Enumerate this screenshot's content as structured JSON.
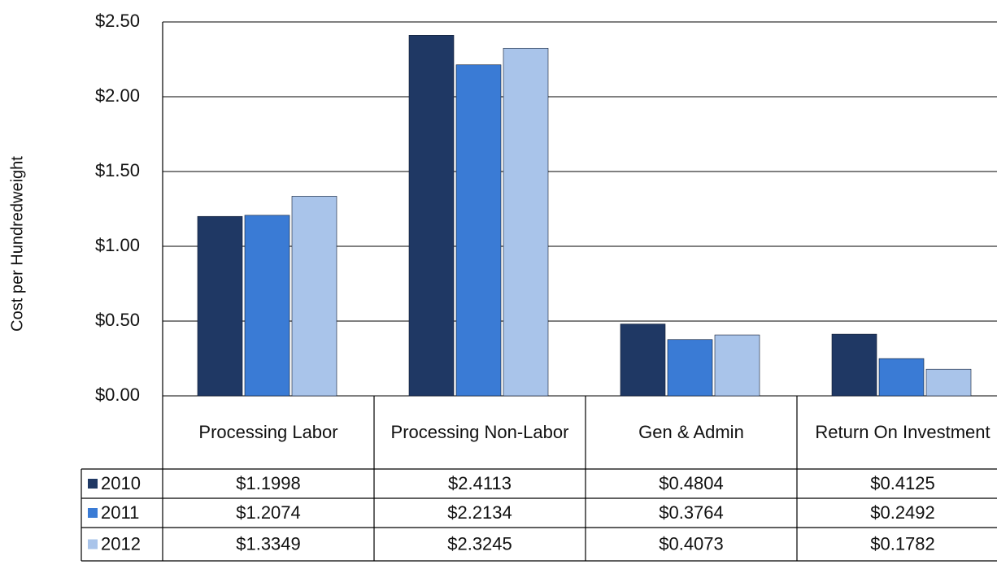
{
  "chart_data": {
    "type": "bar",
    "y_label": "Cost per Hundredweight",
    "categories": [
      "Processing Labor",
      "Processing Non-Labor",
      "Gen & Admin",
      "Return On Investment"
    ],
    "series": [
      {
        "name": "2010",
        "color": "#1f3864",
        "values": [
          1.1998,
          2.4113,
          0.4804,
          0.4125
        ],
        "value_labels": [
          "$1.1998",
          "$2.4113",
          "$0.4804",
          "$0.4125"
        ]
      },
      {
        "name": "2011",
        "color": "#3a7bd5",
        "values": [
          1.2074,
          2.2134,
          0.3764,
          0.2492
        ],
        "value_labels": [
          "$1.2074",
          "$2.2134",
          "$0.3764",
          "$0.2492"
        ]
      },
      {
        "name": "2012",
        "color": "#a9c4ea",
        "values": [
          1.3349,
          2.3245,
          0.4073,
          0.1782
        ],
        "value_labels": [
          "$1.3349",
          "$2.3245",
          "$0.4073",
          "$0.1782"
        ]
      }
    ],
    "ylim": [
      0,
      2.5
    ],
    "yticks": [
      {
        "value": 0,
        "label": "$0.00"
      },
      {
        "value": 0.5,
        "label": "$0.50"
      },
      {
        "value": 1,
        "label": "$1.00"
      },
      {
        "value": 1.5,
        "label": "$1.50"
      },
      {
        "value": 2,
        "label": "$2.00"
      },
      {
        "value": 2.5,
        "label": "$2.50"
      }
    ],
    "grid": true
  }
}
